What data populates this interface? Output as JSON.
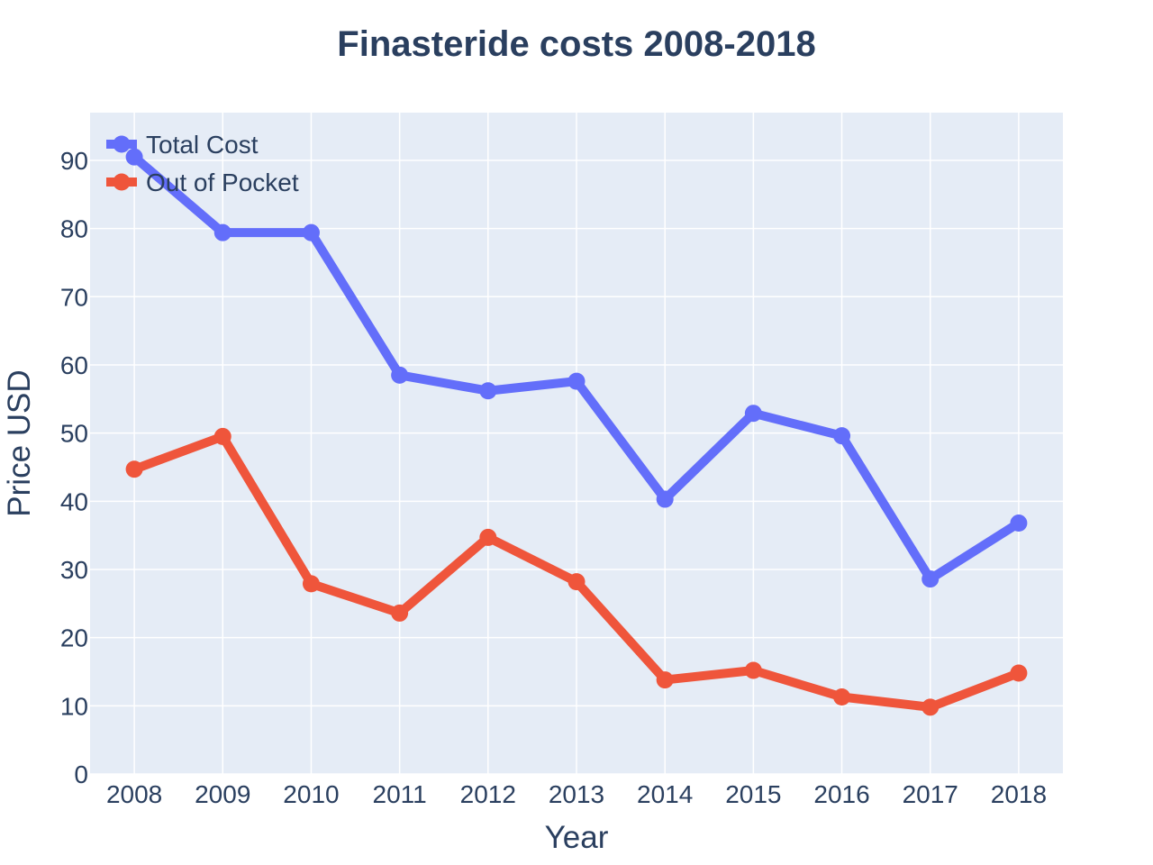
{
  "chart_data": {
    "type": "line",
    "title": "Finasteride costs 2008-2018",
    "xlabel": "Year",
    "ylabel": "Price USD",
    "x": [
      "2008",
      "2009",
      "2010",
      "2011",
      "2012",
      "2013",
      "2014",
      "2015",
      "2016",
      "2017",
      "2018"
    ],
    "ylim": [
      0,
      97
    ],
    "yticks": [
      0,
      10,
      20,
      30,
      40,
      50,
      60,
      70,
      80,
      90
    ],
    "grid": true,
    "legend_position": "top-left",
    "series": [
      {
        "name": "Total Cost",
        "color": "#636efa",
        "values": [
          90.5,
          79.4,
          79.4,
          58.5,
          56.2,
          57.6,
          40.3,
          52.9,
          49.6,
          28.6,
          36.8
        ]
      },
      {
        "name": "Out of Pocket",
        "color": "#ef553b",
        "values": [
          44.7,
          49.5,
          27.9,
          23.6,
          34.7,
          28.2,
          13.8,
          15.2,
          11.3,
          9.8,
          14.8
        ]
      }
    ],
    "colors": {
      "plot_background": "#e5ecf6",
      "grid": "#ffffff",
      "text": "#2a3f5f"
    }
  }
}
